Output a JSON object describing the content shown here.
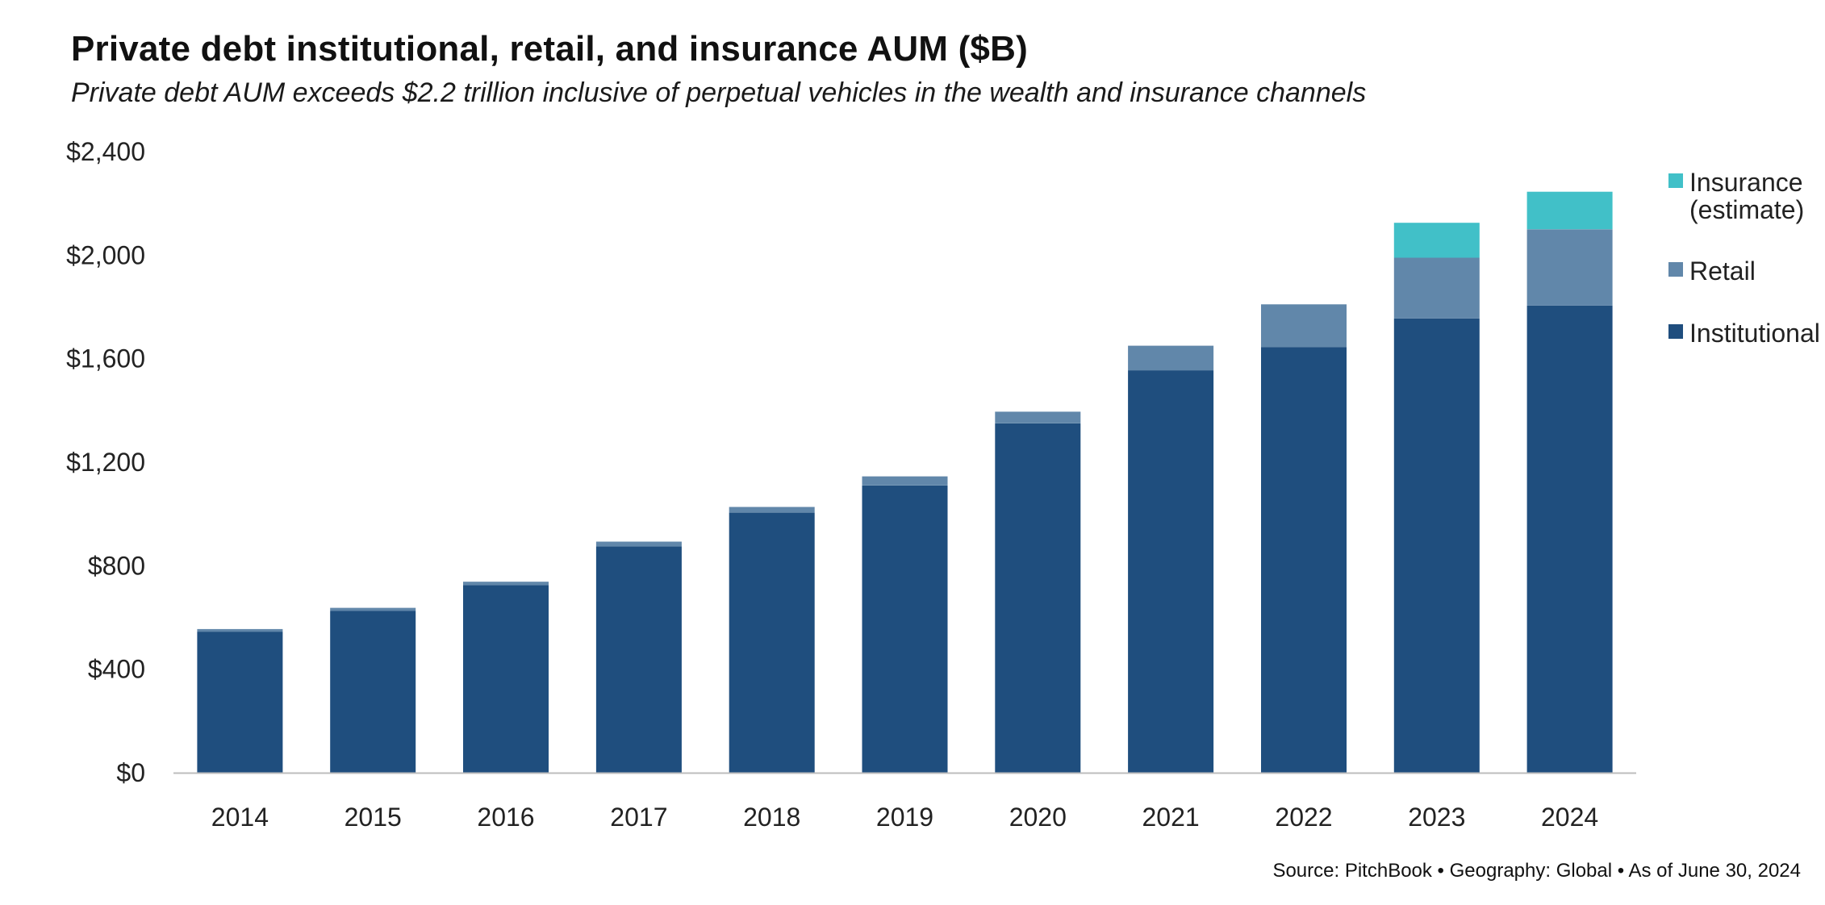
{
  "title": "Private debt institutional, retail, and insurance AUM ($B)",
  "subtitle": "Private debt AUM exceeds $2.2 trillion inclusive of perpetual vehicles in the wealth and insurance channels",
  "source": "Source: PitchBook  •  Geography: Global  •  As of June 30, 2024",
  "chart_data": {
    "type": "bar",
    "stacked": true,
    "categories": [
      "2014",
      "2015",
      "2016",
      "2017",
      "2018",
      "2019",
      "2020",
      "2021",
      "2022",
      "2023",
      "2024"
    ],
    "series": [
      {
        "name": "Institutional",
        "color": "#1F4E7E",
        "values": [
          545,
          625,
          725,
          875,
          1005,
          1110,
          1350,
          1555,
          1645,
          1755,
          1805
        ]
      },
      {
        "name": "Retail",
        "color": "#6187AA",
        "values": [
          10,
          12,
          13,
          18,
          22,
          35,
          45,
          95,
          165,
          235,
          295
        ]
      },
      {
        "name": "Insurance (estimate)",
        "legend_lines": [
          "Insurance",
          "(estimate)"
        ],
        "color": "#41C0C8",
        "values": [
          0,
          0,
          0,
          0,
          0,
          0,
          0,
          0,
          0,
          135,
          145
        ]
      }
    ],
    "y_ticks": [
      "$0",
      "$400",
      "$800",
      "$1,200",
      "$1,600",
      "$2,000",
      "$2,400"
    ],
    "ylim": [
      0,
      2400
    ],
    "grid": false,
    "legend_position": "right",
    "legend_order": [
      "Insurance (estimate)",
      "Retail",
      "Institutional"
    ]
  }
}
